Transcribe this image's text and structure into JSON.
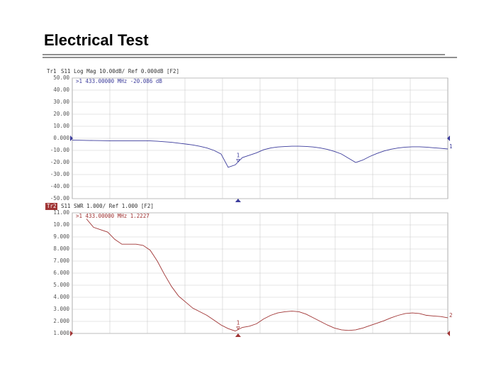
{
  "title": "Electrical Test",
  "chart_data": [
    {
      "type": "line",
      "trace": "Tr1",
      "title": "S11 Log Mag 10.00dB/ Ref 0.000dB [F2]",
      "annotation": ">1  433.00000 MHz -20.086 dB",
      "marker_label": "1",
      "trace_label": "1",
      "grid": true,
      "ylim": [
        -50,
        50
      ],
      "yticks": [
        {
          "value": 50,
          "label": "50.00"
        },
        {
          "value": 40,
          "label": "40.00"
        },
        {
          "value": 30,
          "label": "30.00"
        },
        {
          "value": 20,
          "label": "20.00"
        },
        {
          "value": 10,
          "label": "10.00"
        },
        {
          "value": 0,
          "label": "0.000"
        },
        {
          "value": -10,
          "label": "-10.00"
        },
        {
          "value": -20,
          "label": "-20.00"
        },
        {
          "value": -30,
          "label": "-30.00"
        },
        {
          "value": -40,
          "label": "-40.00"
        },
        {
          "value": -50,
          "label": "-50.00"
        }
      ],
      "series": [
        {
          "color": "#3c3c9c",
          "values": [
            -1.5,
            -1.6,
            -1.7,
            -1.8,
            -1.9,
            -2,
            -2,
            -2,
            -2,
            -2,
            -2,
            -2.1,
            -2.4,
            -2.8,
            -3.3,
            -4,
            -4.7,
            -5.5,
            -6.6,
            -8,
            -10,
            -13,
            -24,
            -22,
            -16,
            -14,
            -12,
            -9.5,
            -8,
            -7.2,
            -6.8,
            -6.5,
            -6.5,
            -6.7,
            -7.2,
            -8,
            -9.2,
            -10.8,
            -13,
            -16.5,
            -20,
            -18,
            -15,
            -12.5,
            -10.5,
            -9,
            -8,
            -7.3,
            -7,
            -7,
            -7.3,
            -7.8,
            -8.3,
            -8.8
          ]
        }
      ]
    },
    {
      "type": "line",
      "trace": "Tr2",
      "title": "S11 SWR 1.000/ Ref 1.000 [F2]",
      "annotation": ">1  433.00000 MHz  1.2227",
      "marker_label": "1",
      "trace_label": "2",
      "grid": true,
      "ylim": [
        1,
        11
      ],
      "yticks": [
        {
          "value": 11,
          "label": "11.00"
        },
        {
          "value": 10,
          "label": "10.00"
        },
        {
          "value": 9,
          "label": "9.000"
        },
        {
          "value": 8,
          "label": "8.000"
        },
        {
          "value": 7,
          "label": "7.000"
        },
        {
          "value": 6,
          "label": "6.000"
        },
        {
          "value": 5,
          "label": "5.000"
        },
        {
          "value": 4,
          "label": "4.000"
        },
        {
          "value": 3,
          "label": "3.000"
        },
        {
          "value": 2,
          "label": "2.000"
        },
        {
          "value": 1,
          "label": "1.000"
        }
      ],
      "series": [
        {
          "color": "#a03434",
          "values": [
            null,
            null,
            10.5,
            9.8,
            9.6,
            9.4,
            8.8,
            8.4,
            8.4,
            8.4,
            8.3,
            7.9,
            7.0,
            5.9,
            4.9,
            4.1,
            3.6,
            3.1,
            2.8,
            2.5,
            2.1,
            1.7,
            1.4,
            1.2,
            1.5,
            1.6,
            1.8,
            2.2,
            2.5,
            2.7,
            2.8,
            2.85,
            2.8,
            2.6,
            2.3,
            2.0,
            1.7,
            1.45,
            1.3,
            1.25,
            1.3,
            1.45,
            1.65,
            1.85,
            2.05,
            2.3,
            2.5,
            2.65,
            2.7,
            2.65,
            2.5,
            2.45,
            2.4,
            2.3
          ]
        }
      ]
    }
  ]
}
